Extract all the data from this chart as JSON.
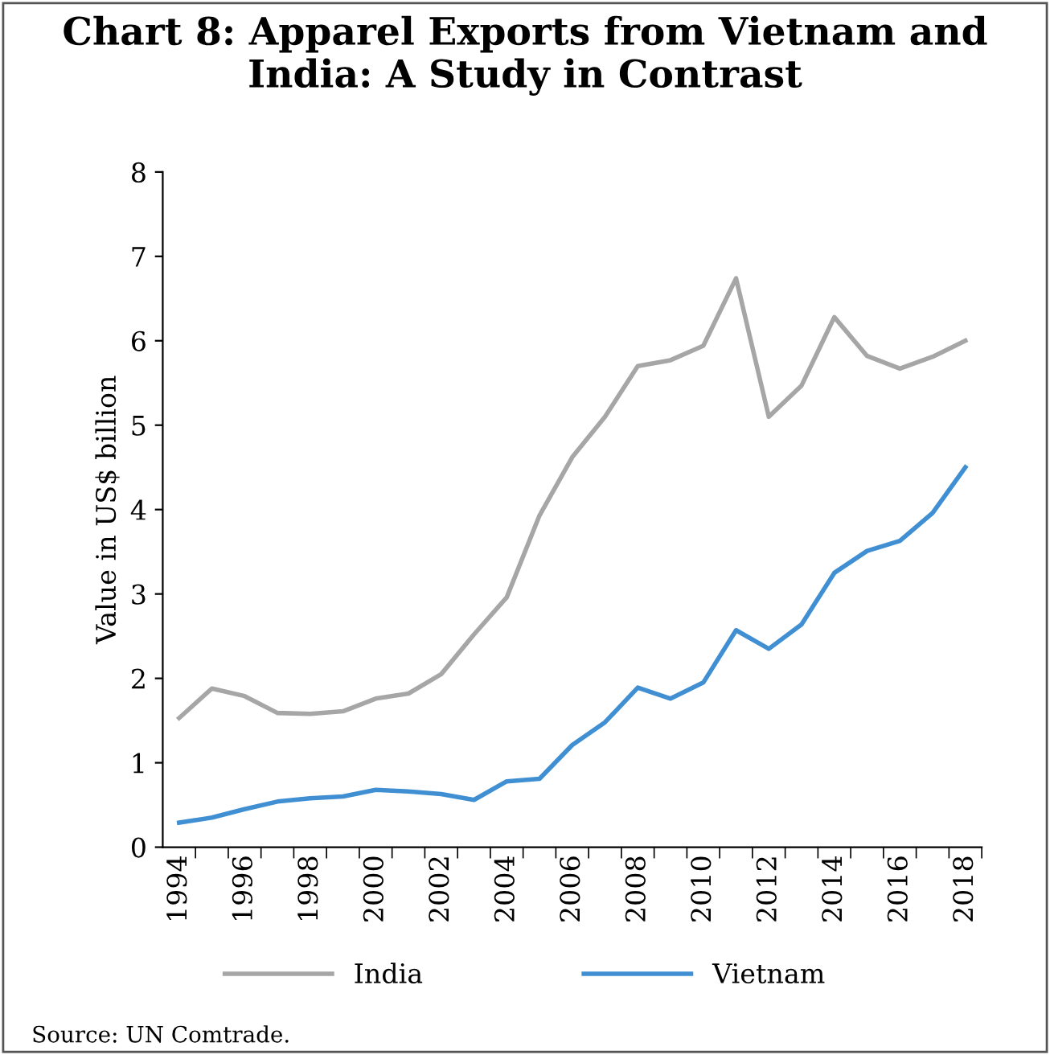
{
  "chart_data": {
    "type": "line",
    "title": "Chart 8: Apparel Exports from Vietnam and India: A Study in Contrast",
    "ylabel": "Value in US$ billion",
    "categories": [
      "1994",
      null,
      "1996",
      null,
      "1998",
      null,
      "2000",
      null,
      "2002",
      null,
      "2004",
      null,
      "2006",
      null,
      "2008",
      null,
      "2010",
      null,
      "2012",
      null,
      "2014",
      null,
      "2016",
      null,
      "2018"
    ],
    "series": [
      {
        "name": "India",
        "color": "#a6a6a6",
        "values": [
          1.53,
          1.88,
          1.79,
          1.59,
          1.58,
          1.61,
          1.76,
          1.82,
          2.05,
          2.52,
          2.96,
          3.93,
          4.62,
          5.1,
          5.7,
          5.77,
          5.94,
          6.74,
          5.1,
          5.47,
          6.28,
          5.82,
          5.67,
          5.81,
          6.0
        ]
      },
      {
        "name": "Vietnam",
        "color": "#3f8fd2",
        "values": [
          0.29,
          0.35,
          0.45,
          0.54,
          0.58,
          0.6,
          0.68,
          0.66,
          0.63,
          0.56,
          0.78,
          0.81,
          1.21,
          1.48,
          1.89,
          1.76,
          1.95,
          2.57,
          2.35,
          2.64,
          3.25,
          3.51,
          3.63,
          3.96,
          4.5
        ]
      }
    ],
    "ylim": [
      0,
      8
    ],
    "yticks": [
      0,
      1,
      2,
      3,
      4,
      5,
      6,
      7,
      8
    ],
    "grid": false,
    "legend": "bottom",
    "marker": "none",
    "line_style": "solid",
    "annotations": [
      "Source: UN Comtrade."
    ]
  }
}
